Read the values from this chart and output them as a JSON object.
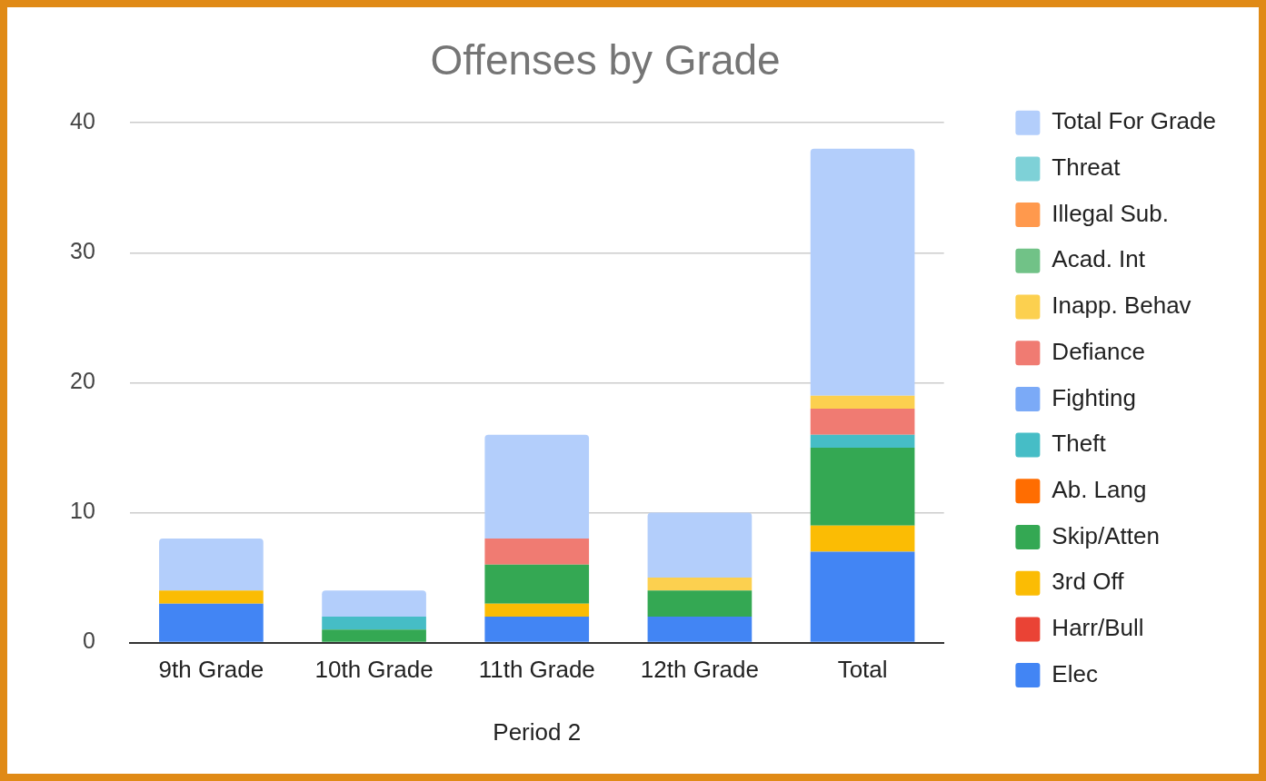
{
  "chart_data": {
    "type": "bar",
    "title": "Offenses by Grade",
    "xlabel": "Period 2",
    "categories": [
      "9th Grade",
      "10th Grade",
      "11th Grade",
      "12th Grade",
      "Total"
    ],
    "stacked": true,
    "ylim": [
      0,
      40
    ],
    "yticks": [
      0,
      10,
      20,
      30,
      40
    ],
    "grid": "y",
    "legend": "right",
    "series": [
      {
        "name": "Elec",
        "color": "#4285f4",
        "values": [
          3,
          0,
          2,
          2,
          7
        ]
      },
      {
        "name": "Harr/Bull",
        "color": "#ea4335",
        "values": [
          0,
          0,
          0,
          0,
          0
        ]
      },
      {
        "name": "3rd Off",
        "color": "#fbbc04",
        "values": [
          1,
          0,
          1,
          0,
          2
        ]
      },
      {
        "name": "Skip/Atten",
        "color": "#34a853",
        "values": [
          0,
          1,
          3,
          2,
          6
        ]
      },
      {
        "name": "Ab. Lang",
        "color": "#ff6d01",
        "values": [
          0,
          0,
          0,
          0,
          0
        ]
      },
      {
        "name": "Theft",
        "color": "#46bdc6",
        "values": [
          0,
          1,
          0,
          0,
          1
        ]
      },
      {
        "name": "Fighting",
        "color": "#7baaf7",
        "values": [
          0,
          0,
          0,
          0,
          0
        ]
      },
      {
        "name": "Defiance",
        "color": "#f07b72",
        "values": [
          0,
          0,
          2,
          0,
          2
        ]
      },
      {
        "name": "Inapp. Behav",
        "color": "#fcd04f",
        "values": [
          0,
          0,
          0,
          1,
          1
        ]
      },
      {
        "name": "Acad. Int",
        "color": "#71c287",
        "values": [
          0,
          0,
          0,
          0,
          0
        ]
      },
      {
        "name": "Illegal Sub.",
        "color": "#ff994d",
        "values": [
          0,
          0,
          0,
          0,
          0
        ]
      },
      {
        "name": "Threat",
        "color": "#7ed1d7",
        "values": [
          0,
          0,
          0,
          0,
          0
        ]
      },
      {
        "name": "Total For Grade",
        "color": "#b3cefb",
        "values": [
          4,
          2,
          8,
          5,
          19
        ]
      }
    ]
  }
}
